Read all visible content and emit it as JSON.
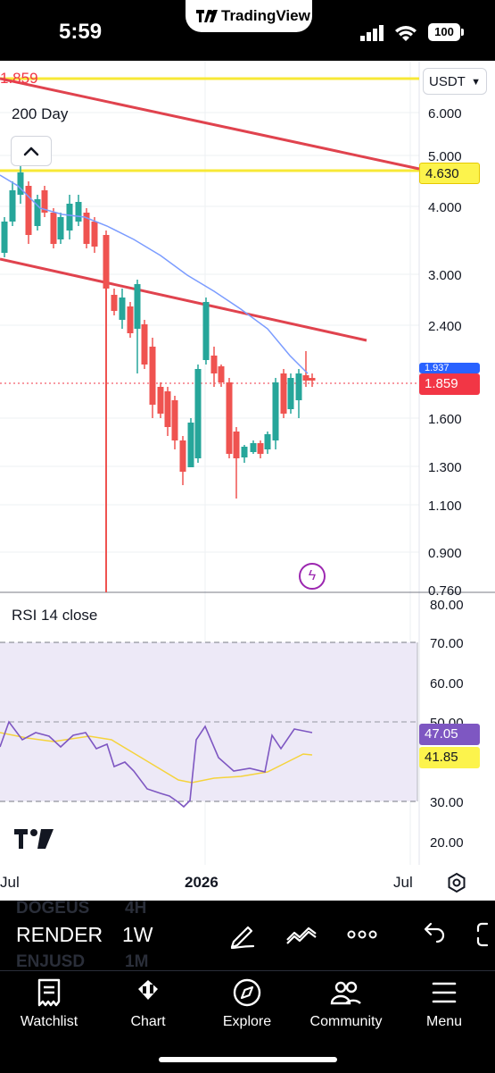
{
  "status_bar": {
    "time": "5:59",
    "app_name": "TradingView",
    "battery": "100"
  },
  "chart": {
    "currency": "USDT",
    "moving_average_label": "200 Day",
    "top_left_level": "1.859",
    "price_axis": [
      "6.000",
      "5.000",
      "4.000",
      "3.000",
      "2.400",
      "1.600",
      "1.300",
      "1.100",
      "0.900",
      "0.760"
    ],
    "resistance_level": "4.630",
    "last_price": "1.859",
    "ma_value_partial": "1.937",
    "time_labels": [
      "Jul",
      "2026",
      "Jul"
    ],
    "colors": {
      "up": "#26a69a",
      "down": "#ef5350",
      "ma": "#7b9cff",
      "trendline": "#e0434e",
      "level": "#f7e836",
      "rsi": "#7e57c2",
      "rsi_ma": "#f5d33c"
    }
  },
  "rsi": {
    "label": "RSI 14 close",
    "axis": [
      "80.00",
      "70.00",
      "60.00",
      "50.00",
      "40.00",
      "30.00",
      "20.00"
    ],
    "value": "47.05",
    "ma_value": "41.85"
  },
  "symbol_bar": {
    "ghost_top": "DOGEUS",
    "ghost_top_tf": "4H",
    "symbol": "RENDER",
    "timeframe": "1W",
    "ghost_bottom": "ENJUSD",
    "ghost_bottom_tf": "1M"
  },
  "nav": [
    {
      "label": "Watchlist",
      "icon": "watchlist-icon"
    },
    {
      "label": "Chart",
      "icon": "chart-icon"
    },
    {
      "label": "Explore",
      "icon": "compass-icon"
    },
    {
      "label": "Community",
      "icon": "community-icon"
    },
    {
      "label": "Menu",
      "icon": "menu-icon"
    }
  ]
}
